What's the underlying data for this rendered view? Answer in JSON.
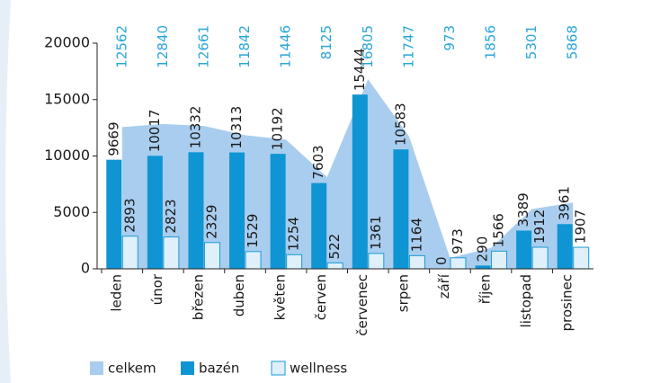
{
  "chart_data": {
    "type": "bar",
    "categories": [
      "leden",
      "únor",
      "březen",
      "duben",
      "květen",
      "červen",
      "červenec",
      "srpen",
      "září",
      "říjen",
      "listopad",
      "prosinec"
    ],
    "series": [
      {
        "name": "celkem",
        "type": "area",
        "color": "#a9cdee",
        "values": [
          12562,
          12840,
          12661,
          11842,
          11446,
          8125,
          16805,
          11747,
          973,
          1856,
          5301,
          5868
        ]
      },
      {
        "name": "bazén",
        "type": "bar",
        "color": "#0f95d3",
        "values": [
          9669,
          10017,
          10332,
          10313,
          10192,
          7603,
          15444,
          10583,
          0,
          290,
          3389,
          3961
        ]
      },
      {
        "name": "wellness",
        "type": "bar",
        "color": "#dff0fb",
        "values": [
          2893,
          2823,
          2329,
          1529,
          1254,
          522,
          1361,
          1164,
          973,
          1566,
          1912,
          1907
        ]
      }
    ],
    "ylim": [
      0,
      20000
    ],
    "yticks": [
      0,
      5000,
      10000,
      15000,
      20000
    ]
  }
}
